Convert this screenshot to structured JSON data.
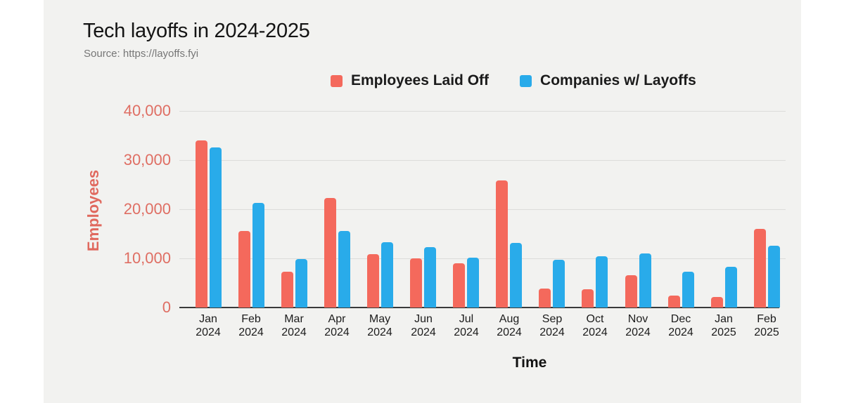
{
  "chart": {
    "title": "Tech layoffs in 2024-2025",
    "source": "Source: https://layoffs.fyi"
  },
  "legend": {
    "items": [
      {
        "label": "Employees Laid Off",
        "color": "#f4695c"
      },
      {
        "label": "Companies w/ Layoffs",
        "color": "#29abea"
      }
    ]
  },
  "chart_data": {
    "type": "bar",
    "title": "Tech layoffs in 2024-2025",
    "subtitle": "Source: https://layoffs.fyi",
    "categories": [
      "Jan 2024",
      "Feb 2024",
      "Mar 2024",
      "Apr 2024",
      "May 2024",
      "Jun 2024",
      "Jul 2024",
      "Aug 2024",
      "Sep 2024",
      "Oct 2024",
      "Nov 2024",
      "Dec 2024",
      "Jan 2025",
      "Feb 2025"
    ],
    "series": [
      {
        "name": "Employees Laid Off",
        "color": "#f4695c",
        "values": [
          34000,
          15600,
          7300,
          22300,
          10800,
          10000,
          9000,
          25800,
          3800,
          3700,
          6500,
          2400,
          2100,
          16000
        ]
      },
      {
        "name": "Companies w/ Layoffs",
        "color": "#29abea",
        "values": [
          32600,
          21300,
          9800,
          15600,
          13300,
          12300,
          10200,
          13200,
          9700,
          10400,
          11000,
          7300,
          8300,
          12600
        ]
      }
    ],
    "xlabel": "Time",
    "ylabel": "Employees",
    "ylim": [
      0,
      40000
    ],
    "yticks": [
      0,
      10000,
      20000,
      30000,
      40000
    ],
    "ytick_labels": [
      "0",
      "10,000",
      "20,000",
      "30,000",
      "40,000"
    ],
    "grid": true,
    "legend_position": "top-center"
  },
  "colors": {
    "page_bg": "#ffffff",
    "card_bg": "#f2f2f0",
    "gridline": "#dcdcda",
    "axis_line": "#3a3a3a",
    "ytick_text": "#df6e63",
    "title_text": "#141414",
    "source_text": "#767676",
    "xtick_text": "#1c1c1c"
  }
}
